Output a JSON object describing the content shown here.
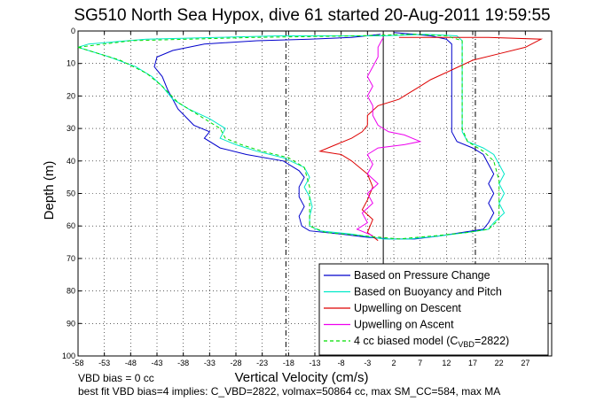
{
  "chart_data": {
    "type": "line",
    "title": "SG510 North Sea Hypox, dive 61 started 20-Aug-2011 19:59:55",
    "xlabel": "Vertical Velocity (cm/s)",
    "ylabel": "Depth (m)",
    "xlim": [
      -58,
      32
    ],
    "ylim": [
      100,
      0
    ],
    "y_reversed": true,
    "grid": true,
    "legend_position": "bottom-right",
    "x_ticks": [
      "-58",
      "-53",
      "-48",
      "-43",
      "-38",
      "-33",
      "-28",
      "-23",
      "-18",
      "-13",
      "-8",
      "-3",
      "2",
      "7",
      "12",
      "17",
      "22",
      "27"
    ],
    "y_ticks": [
      "0",
      "10",
      "20",
      "30",
      "40",
      "50",
      "60",
      "70",
      "80",
      "90",
      "100"
    ],
    "reference_lines": [
      {
        "x": -18.5,
        "style": "dash-dot"
      },
      {
        "x": 0,
        "style": "solid"
      },
      {
        "x": 17.5,
        "style": "dash-dot"
      }
    ],
    "series": [
      {
        "name": "Based on Pressure Change",
        "color": "#0000cc",
        "points": [
          [
            -0.5,
            1
          ],
          [
            -6,
            2
          ],
          [
            -14,
            2.5
          ],
          [
            -24,
            3
          ],
          [
            -34,
            4
          ],
          [
            -40,
            6
          ],
          [
            -43,
            8
          ],
          [
            -43.5,
            11
          ],
          [
            -42,
            14
          ],
          [
            -41,
            18
          ],
          [
            -39,
            24
          ],
          [
            -36,
            29
          ],
          [
            -33,
            31
          ],
          [
            -34,
            33
          ],
          [
            -31,
            36
          ],
          [
            -26,
            38
          ],
          [
            -19,
            40
          ],
          [
            -16,
            43
          ],
          [
            -15,
            45
          ],
          [
            -16,
            48
          ],
          [
            -16,
            51
          ],
          [
            -15,
            54
          ],
          [
            -16,
            57
          ],
          [
            -15.5,
            60
          ],
          [
            -14,
            61.5
          ],
          [
            -8,
            62.5
          ],
          [
            -3,
            63.5
          ],
          [
            1,
            64
          ],
          [
            6,
            64
          ],
          [
            11,
            63
          ],
          [
            15,
            62
          ],
          [
            19,
            61
          ],
          [
            20,
            59
          ],
          [
            21,
            56
          ],
          [
            20,
            53
          ],
          [
            21,
            50
          ],
          [
            20,
            47
          ],
          [
            21,
            44
          ],
          [
            20,
            41
          ],
          [
            19,
            38
          ],
          [
            17,
            36
          ],
          [
            14,
            34
          ],
          [
            13,
            31
          ],
          [
            13,
            26
          ],
          [
            13,
            20
          ],
          [
            13,
            14
          ],
          [
            13,
            10
          ],
          [
            13,
            6
          ],
          [
            13,
            4
          ],
          [
            12,
            2.5
          ],
          [
            9,
            1.5
          ],
          [
            6,
            1
          ],
          [
            2,
            0.5
          ]
        ]
      },
      {
        "name": "Based on Buoyancy and Pitch",
        "color": "#00e8c8",
        "points": [
          [
            -58,
            5
          ],
          [
            -52,
            8
          ],
          [
            -47,
            11
          ],
          [
            -44,
            14
          ],
          [
            -42,
            17
          ],
          [
            -40,
            21
          ],
          [
            -37,
            24
          ],
          [
            -33,
            27
          ],
          [
            -30,
            30
          ],
          [
            -31,
            33
          ],
          [
            -28,
            35
          ],
          [
            -24,
            37
          ],
          [
            -19,
            39
          ],
          [
            -15,
            42
          ],
          [
            -14,
            45
          ],
          [
            -15,
            48
          ],
          [
            -14,
            51
          ],
          [
            -13.5,
            54
          ],
          [
            -14,
            57
          ],
          [
            -14,
            60
          ],
          [
            -12,
            61.5
          ],
          [
            -6,
            62.5
          ],
          [
            0,
            64
          ],
          [
            5,
            64
          ],
          [
            11,
            63
          ],
          [
            16,
            62
          ],
          [
            20,
            61
          ],
          [
            21,
            59
          ],
          [
            23,
            56
          ],
          [
            22,
            53
          ],
          [
            23,
            50
          ],
          [
            22,
            47
          ],
          [
            23,
            44
          ],
          [
            22,
            41
          ],
          [
            21,
            38
          ],
          [
            19,
            36
          ],
          [
            16,
            34
          ],
          [
            15,
            31
          ],
          [
            15,
            26
          ],
          [
            15,
            20
          ],
          [
            15,
            14
          ],
          [
            15,
            10
          ],
          [
            15,
            6
          ],
          [
            15,
            3
          ],
          [
            14,
            1.5
          ],
          [
            8,
            1
          ],
          [
            0,
            1.5
          ],
          [
            -20,
            1.5
          ],
          [
            -45,
            2.5
          ],
          [
            -56,
            4
          ],
          [
            -58,
            5
          ]
        ]
      },
      {
        "name": "Upwelling on Descent",
        "color": "#dd0000",
        "points": [
          [
            3,
            2
          ],
          [
            20,
            2
          ],
          [
            30,
            2.5
          ],
          [
            27,
            5
          ],
          [
            22,
            7
          ],
          [
            17,
            9
          ],
          [
            13,
            12
          ],
          [
            9,
            15
          ],
          [
            7,
            17
          ],
          [
            5,
            19
          ],
          [
            3,
            21
          ],
          [
            -1,
            23
          ],
          [
            -3,
            26
          ],
          [
            -3,
            29
          ],
          [
            -4,
            31
          ],
          [
            -6,
            33
          ],
          [
            -9,
            35
          ],
          [
            -12,
            37
          ],
          [
            -8,
            38
          ],
          [
            -6,
            40
          ],
          [
            -3,
            44
          ],
          [
            -2,
            48
          ],
          [
            -3,
            52
          ],
          [
            -4,
            55
          ],
          [
            -2,
            58
          ],
          [
            -3,
            62
          ],
          [
            -1,
            64.5
          ]
        ]
      },
      {
        "name": "Upwelling on Ascent",
        "color": "#ee00ee",
        "points": [
          [
            -2,
            63
          ],
          [
            -5,
            61
          ],
          [
            -3,
            59
          ],
          [
            -4,
            56
          ],
          [
            -2,
            53
          ],
          [
            -3,
            50
          ],
          [
            -1,
            47
          ],
          [
            -3,
            44
          ],
          [
            -2,
            41
          ],
          [
            -3,
            38
          ],
          [
            -1,
            36
          ],
          [
            4,
            35
          ],
          [
            7,
            34
          ],
          [
            4,
            32
          ],
          [
            1,
            31
          ],
          [
            -1,
            29
          ],
          [
            -2,
            26
          ],
          [
            -2,
            23
          ],
          [
            -3,
            20
          ],
          [
            -2,
            17
          ],
          [
            -3,
            14
          ],
          [
            -2,
            11
          ],
          [
            -1,
            8
          ],
          [
            -1,
            5
          ],
          [
            0,
            2
          ]
        ]
      },
      {
        "name": "4 cc biased model (C_VBD=2822)",
        "color": "#00dd00",
        "style": "dashed",
        "points": [
          [
            -58,
            5
          ],
          [
            -50,
            9
          ],
          [
            -45,
            13
          ],
          [
            -42,
            17
          ],
          [
            -39,
            22
          ],
          [
            -35,
            26
          ],
          [
            -31,
            30
          ],
          [
            -30,
            33
          ],
          [
            -27,
            35
          ],
          [
            -23,
            37
          ],
          [
            -18,
            39
          ],
          [
            -15,
            42
          ],
          [
            -14,
            48
          ],
          [
            -14,
            54
          ],
          [
            -14,
            60
          ],
          [
            -11,
            62
          ],
          [
            -4,
            63
          ],
          [
            3,
            64
          ],
          [
            10,
            63
          ],
          [
            16,
            62
          ],
          [
            20,
            61
          ],
          [
            22,
            58
          ],
          [
            22,
            52
          ],
          [
            22,
            46
          ],
          [
            21,
            40
          ],
          [
            19,
            37
          ],
          [
            16,
            34
          ],
          [
            15,
            30
          ],
          [
            15,
            24
          ],
          [
            15,
            18
          ],
          [
            15,
            12
          ],
          [
            15,
            6
          ],
          [
            15,
            3
          ],
          [
            12,
            1.5
          ],
          [
            6,
            1
          ],
          [
            -5,
            1.5
          ],
          [
            -25,
            2
          ],
          [
            -48,
            3
          ],
          [
            -58,
            5
          ]
        ]
      }
    ],
    "legend_entries": [
      {
        "text": "Based on Pressure Change"
      },
      {
        "text": "Based on Buoyancy and Pitch"
      },
      {
        "text": "Upwelling on Descent"
      },
      {
        "text": "Upwelling on Ascent"
      },
      {
        "text_main": "4 cc biased model (C",
        "text_sub": "VBD",
        "text_end": "=2822)"
      }
    ],
    "annotations": [
      "VBD bias = 0 cc",
      "best fit VBD bias=4 implies: C_VBD=2822, volmax=50864 cc, max SM_CC=584, max MA"
    ]
  }
}
